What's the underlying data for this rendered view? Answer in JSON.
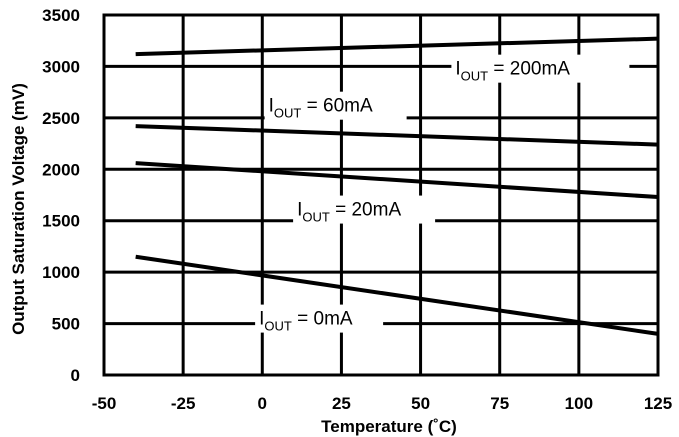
{
  "chart_data": {
    "type": "line",
    "title": "",
    "xlabel": "Temperature (˚C)",
    "ylabel": "Output Saturation Voltage (mV)",
    "xlim": [
      -50,
      125
    ],
    "ylim": [
      0,
      3500
    ],
    "xticks": [
      -50,
      -25,
      0,
      25,
      50,
      75,
      100,
      125
    ],
    "yticks": [
      0,
      500,
      1000,
      1500,
      2000,
      2500,
      3000,
      3500
    ],
    "grid": true,
    "series": [
      {
        "name": "I_OUT = 200mA",
        "x": [
          -40,
          125
        ],
        "y": [
          3120,
          3270
        ]
      },
      {
        "name": "I_OUT = 60mA",
        "x": [
          -40,
          125
        ],
        "y": [
          2420,
          2240
        ]
      },
      {
        "name": "I_OUT = 20mA",
        "x": [
          -40,
          125
        ],
        "y": [
          2060,
          1730
        ]
      },
      {
        "name": "I_OUT = 0mA",
        "x": [
          -40,
          125
        ],
        "y": [
          1150,
          400
        ]
      }
    ],
    "annotations": [
      {
        "prefix": "I",
        "sub": "OUT",
        "suffix": " = 200mA",
        "series": 0
      },
      {
        "prefix": "I",
        "sub": "OUT",
        "suffix": " = 60mA",
        "series": 1
      },
      {
        "prefix": "I",
        "sub": "OUT",
        "suffix": " = 20mA",
        "series": 2
      },
      {
        "prefix": "I",
        "sub": "OUT",
        "suffix": " = 0mA",
        "series": 3
      }
    ]
  }
}
